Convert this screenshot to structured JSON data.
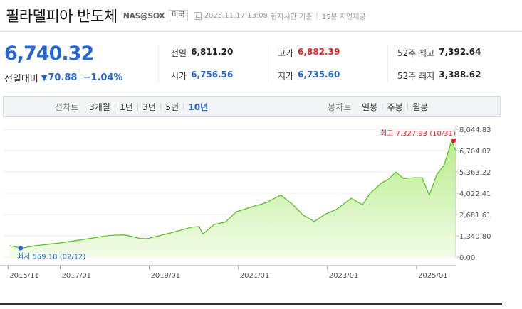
{
  "header": {
    "title": "필라델피아 반도체",
    "ticker": "NAS@SOX",
    "market": "미국",
    "timestamp": "2025.11.17 13:08",
    "time_basis": "현지시간 기준",
    "delay_note": "15분 지연제공"
  },
  "quote": {
    "price": "6,740.32",
    "change_label": "전일대비",
    "change_value": "70.88",
    "change_pct": "−1.04%",
    "direction_icon": "down-triangle-icon"
  },
  "stats": {
    "prev_close_label": "전일",
    "prev_close": "6,811.20",
    "open_label": "시가",
    "open": "6,756.56",
    "high_label": "고가",
    "high": "6,882.39",
    "low_label": "저가",
    "low": "6,735.60",
    "w52_high_label": "52주 최고",
    "w52_high": "7,392.64",
    "w52_low_label": "52주 최저",
    "w52_low": "3,388.62"
  },
  "tabs": {
    "line_title": "선차트",
    "line_tabs": [
      "3개월",
      "1년",
      "3년",
      "5년",
      "10년"
    ],
    "line_active": "10년",
    "candle_title": "봉차트",
    "candle_tabs": [
      "일봉",
      "주봉",
      "월봉"
    ]
  },
  "colors": {
    "accent_blue": "#2566d3",
    "up_red": "#e0242a",
    "area_line": "#5cc02a",
    "area_fill_top": "#b8ec8c",
    "area_fill_bottom": "#f2fce8"
  },
  "chart_data": {
    "type": "area",
    "title": "",
    "xlabel": "",
    "ylabel": "",
    "x_ticks": [
      "2015/11",
      "2017/01",
      "2019/01",
      "2021/01",
      "2023/01",
      "2025/01"
    ],
    "y_ticks": [
      "8,044.83",
      "6,704.02",
      "5,363.22",
      "4,022.41",
      "2,681.61",
      "1,340.80",
      "0.00"
    ],
    "ylim": [
      0,
      8044.83
    ],
    "max_annotation": "최고 7,327.93 (10/31)",
    "min_annotation": "최저 559.18 (02/12)",
    "max_point": {
      "x": "2025/10/31",
      "y": 7327.93
    },
    "min_point": {
      "x": "2016/02/12",
      "y": 559.18
    },
    "series": [
      {
        "name": "",
        "x": [
          "2015/11",
          "2016/02",
          "2016/06",
          "2016/12",
          "2017/06",
          "2017/12",
          "2018/03",
          "2018/06",
          "2018/10",
          "2018/12",
          "2019/06",
          "2019/12",
          "2020/02",
          "2020/03",
          "2020/06",
          "2020/09",
          "2020/12",
          "2021/04",
          "2021/08",
          "2021/12",
          "2022/03",
          "2022/06",
          "2022/09",
          "2022/12",
          "2023/03",
          "2023/07",
          "2023/10",
          "2023/12",
          "2024/03",
          "2024/05",
          "2024/07",
          "2024/09",
          "2024/12",
          "2025/02",
          "2025/04",
          "2025/06",
          "2025/08",
          "2025/10",
          "2025/11"
        ],
        "y": [
          730,
          560,
          720,
          880,
          1080,
          1300,
          1380,
          1400,
          1180,
          1160,
          1500,
          1880,
          1920,
          1450,
          2050,
          2200,
          2850,
          3150,
          3420,
          3900,
          3350,
          2650,
          2250,
          2700,
          3000,
          3700,
          3300,
          4000,
          4650,
          4900,
          5350,
          4950,
          5000,
          5000,
          3900,
          5200,
          5800,
          7328,
          6740
        ]
      }
    ]
  }
}
